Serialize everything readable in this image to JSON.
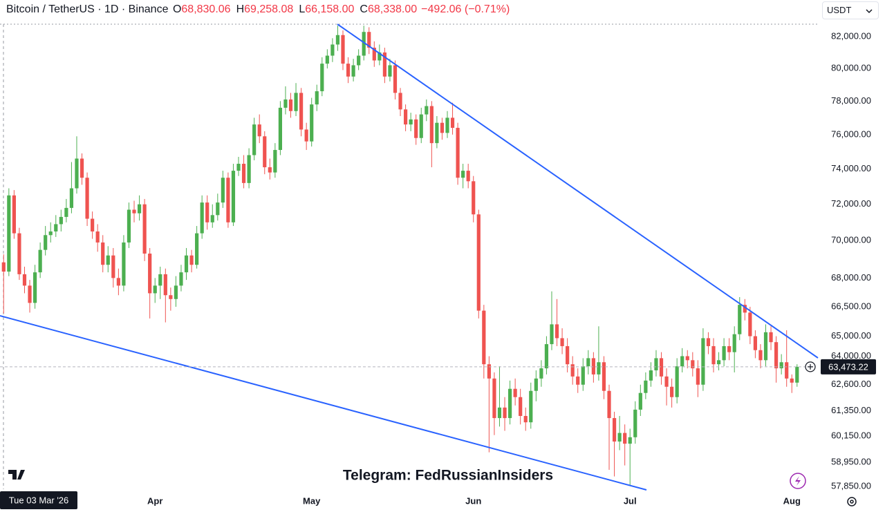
{
  "chart_data": {
    "type": "candlestick",
    "title": "Bitcoin / TetherUS · 1D · Binance",
    "ohlc_legend": {
      "o": "O",
      "open": "68,830.06",
      "h": "H",
      "high": "69,258.08",
      "l": "L",
      "low": "66,158.00",
      "c": "C",
      "close": "68,338.00",
      "change": "−492.06 (−0.71%)"
    },
    "currency": "USDT",
    "crosshair_date": "Tue 03 Mar '26",
    "watermark": "Telegram: FedRussianInsiders",
    "up_color": "#4caf50",
    "down_color": "#ef5350",
    "log_scale": true,
    "grid": false,
    "last_price": {
      "value": 63473.22,
      "label": "63,473.22"
    },
    "xlim": [
      -0.7,
      156
    ],
    "xticks": [
      {
        "value": 29,
        "label": "Apr"
      },
      {
        "value": 59,
        "label": "May"
      },
      {
        "value": 90,
        "label": "Jun"
      },
      {
        "value": 120,
        "label": "Jul"
      },
      {
        "value": 151,
        "label": "Aug"
      }
    ],
    "ylim": [
      57726,
      82796
    ],
    "yticks": [
      {
        "value": 82000,
        "label": "82,000.00"
      },
      {
        "value": 80000,
        "label": "80,000.00"
      },
      {
        "value": 78000,
        "label": "78,000.00"
      },
      {
        "value": 76000,
        "label": "76,000.00"
      },
      {
        "value": 74000,
        "label": "74,000.00"
      },
      {
        "value": 72000,
        "label": "72,000.00"
      },
      {
        "value": 70000,
        "label": "70,000.00"
      },
      {
        "value": 68000,
        "label": "68,000.00"
      },
      {
        "value": 66500,
        "label": "66,500.00"
      },
      {
        "value": 65000,
        "label": "65,000.00"
      },
      {
        "value": 64000,
        "label": "64,000.00"
      },
      {
        "value": 62600,
        "label": "62,600.00"
      },
      {
        "value": 61350,
        "label": "61,350.00"
      },
      {
        "value": 60150,
        "label": "60,150.00"
      },
      {
        "value": 58950,
        "label": "58,950.00"
      },
      {
        "value": 57850,
        "label": "57,850.00"
      }
    ],
    "open": [
      68830.06,
      68338,
      72500,
      70400,
      68200,
      67600,
      66700,
      68300,
      69500,
      70300,
      70500,
      70900,
      71300,
      71800,
      72900,
      74600,
      73500,
      71200,
      70500,
      69900,
      68700,
      69200,
      68000,
      67600,
      69900,
      71700,
      71500,
      72000,
      69300,
      67200,
      67600,
      68200,
      67100,
      66900,
      67600,
      68300,
      69200,
      68700,
      70400,
      72100,
      71000,
      71400,
      72100,
      73500,
      71000,
      73900,
      74300,
      73200,
      74800,
      76600,
      75900,
      74100,
      73800,
      75100,
      77600,
      78100,
      77400,
      78500,
      76300,
      75600,
      77800,
      78600,
      80300,
      80800,
      81500,
      82100,
      80300,
      79500,
      80200,
      80800,
      82300,
      81300,
      80500,
      81000,
      79500,
      80200,
      78500,
      77500,
      76600,
      76900,
      75800,
      77200,
      77700,
      75500,
      76700,
      76100,
      77000,
      76400,
      73500,
      73900,
      73300,
      71440,
      66300,
      63600,
      62900,
      61000,
      61500,
      61000,
      62400,
      62000,
      61100,
      60800,
      62300,
      62900,
      63400,
      64600,
      65600,
      64900,
      64500,
      63600,
      63000,
      62600,
      63500,
      63900,
      63100,
      63700,
      62300,
      61000,
      59900,
      60300,
      59800,
      60100,
      61400,
      62200,
      62800,
      63300,
      63900,
      63000,
      62500,
      62000,
      63500,
      64000,
      63800,
      63400,
      62600,
      64900,
      64500,
      63600,
      63800,
      64500,
      64200,
      65100,
      66600,
      66200,
      65000,
      64300,
      63800,
      65200,
      64700,
      63400,
      63700,
      62900,
      62700
    ],
    "high": [
      69258.08,
      72900,
      72800,
      70700,
      68600,
      67900,
      68700,
      69900,
      70800,
      71000,
      71400,
      71700,
      72300,
      74400,
      75900,
      74900,
      73800,
      71600,
      70900,
      70300,
      69700,
      69600,
      68500,
      70300,
      72100,
      72200,
      72500,
      72300,
      69600,
      68000,
      68600,
      68500,
      67500,
      68100,
      68700,
      69600,
      69500,
      70800,
      72500,
      72500,
      72000,
      72600,
      73900,
      73800,
      74300,
      74700,
      74800,
      75200,
      77000,
      77200,
      76200,
      74600,
      75500,
      78000,
      78900,
      78500,
      79100,
      78800,
      76700,
      78200,
      79000,
      80700,
      81200,
      81900,
      82700,
      82400,
      80700,
      80600,
      81200,
      82700,
      82600,
      81700,
      81500,
      81300,
      80600,
      80500,
      78800,
      77800,
      77300,
      77200,
      77600,
      78100,
      78000,
      77100,
      77000,
      77400,
      77900,
      76700,
      74300,
      74300,
      73600,
      71700,
      66600,
      64000,
      63200,
      63500,
      62000,
      62800,
      62900,
      62400,
      61500,
      62700,
      63300,
      63800,
      65000,
      67300,
      66900,
      65400,
      64900,
      64000,
      63400,
      63900,
      64300,
      64200,
      65500,
      64000,
      62600,
      61300,
      61100,
      60700,
      60500,
      61800,
      62600,
      63200,
      63700,
      64300,
      64200,
      63400,
      62900,
      63900,
      64400,
      64300,
      64200,
      63800,
      65400,
      65200,
      64900,
      64200,
      64900,
      64900,
      65500,
      67000,
      66900,
      66500,
      65300,
      64600,
      65600,
      65500,
      65000,
      64100,
      65300,
      63100,
      63600
    ],
    "low": [
      66158,
      68100,
      70100,
      67900,
      67200,
      66200,
      66400,
      68000,
      69200,
      69900,
      70200,
      70500,
      71000,
      71500,
      72600,
      73100,
      70800,
      70100,
      69400,
      68300,
      68300,
      67500,
      67100,
      67300,
      69600,
      71000,
      71100,
      68900,
      65900,
      66700,
      66900,
      65700,
      66300,
      66500,
      67300,
      67900,
      68300,
      68500,
      70100,
      70600,
      70700,
      71100,
      71800,
      70700,
      70800,
      73600,
      72900,
      72900,
      74500,
      75500,
      73700,
      73400,
      73500,
      74800,
      77200,
      77000,
      77100,
      75900,
      75100,
      75300,
      77400,
      78300,
      80000,
      80400,
      81100,
      79900,
      79100,
      79200,
      79900,
      80500,
      80900,
      80100,
      80200,
      79100,
      79200,
      78100,
      77100,
      76200,
      76200,
      75400,
      75500,
      76800,
      74100,
      75200,
      75700,
      75800,
      76000,
      73100,
      72900,
      72900,
      71000,
      65900,
      62900,
      59400,
      60200,
      60600,
      60400,
      60700,
      61600,
      60700,
      60400,
      60500,
      61800,
      62500,
      63100,
      64300,
      64500,
      64100,
      63200,
      62600,
      62200,
      62300,
      63100,
      62700,
      62800,
      61900,
      58600,
      58300,
      59500,
      58800,
      57900,
      59800,
      61100,
      61900,
      62500,
      63000,
      62600,
      61600,
      61500,
      61700,
      63200,
      63400,
      63000,
      62000,
      62300,
      64100,
      63200,
      63300,
      63500,
      63800,
      63200,
      64800,
      65800,
      64600,
      63900,
      63400,
      63500,
      64300,
      62700,
      63100,
      62500,
      62200,
      62500
    ],
    "close": [
      68338,
      72500,
      70400,
      68200,
      67600,
      66700,
      68300,
      69500,
      70300,
      70500,
      70900,
      71300,
      71800,
      72900,
      74600,
      73500,
      71200,
      70500,
      69900,
      68700,
      69200,
      68000,
      67600,
      69900,
      71700,
      71500,
      72000,
      69300,
      67200,
      67600,
      68200,
      67100,
      66900,
      67600,
      68300,
      69200,
      68700,
      70400,
      72100,
      71000,
      71400,
      72100,
      73500,
      71000,
      73900,
      74300,
      73200,
      74800,
      76600,
      75900,
      74100,
      73800,
      75100,
      77600,
      78100,
      77400,
      78500,
      76300,
      75600,
      77800,
      78600,
      80300,
      80800,
      81500,
      82100,
      80300,
      79500,
      80200,
      80800,
      82300,
      81300,
      80500,
      81000,
      79500,
      80200,
      78500,
      77500,
      76600,
      76900,
      75800,
      77200,
      77700,
      75500,
      76700,
      76100,
      77000,
      76400,
      73500,
      73900,
      73300,
      71440,
      66300,
      63600,
      62900,
      61000,
      61500,
      61000,
      62400,
      62000,
      61100,
      60800,
      62300,
      62900,
      63400,
      64600,
      65600,
      64900,
      64500,
      63600,
      63000,
      62600,
      63500,
      63900,
      63100,
      63700,
      62300,
      61000,
      59900,
      60300,
      59800,
      60100,
      61400,
      62200,
      62800,
      63300,
      63900,
      63000,
      62500,
      62000,
      63500,
      64000,
      63800,
      63400,
      62600,
      64900,
      64500,
      63600,
      63800,
      64500,
      64200,
      65100,
      66600,
      66200,
      65000,
      64300,
      63800,
      65200,
      64700,
      63400,
      63700,
      62900,
      62700,
      63473.22
    ]
  }
}
